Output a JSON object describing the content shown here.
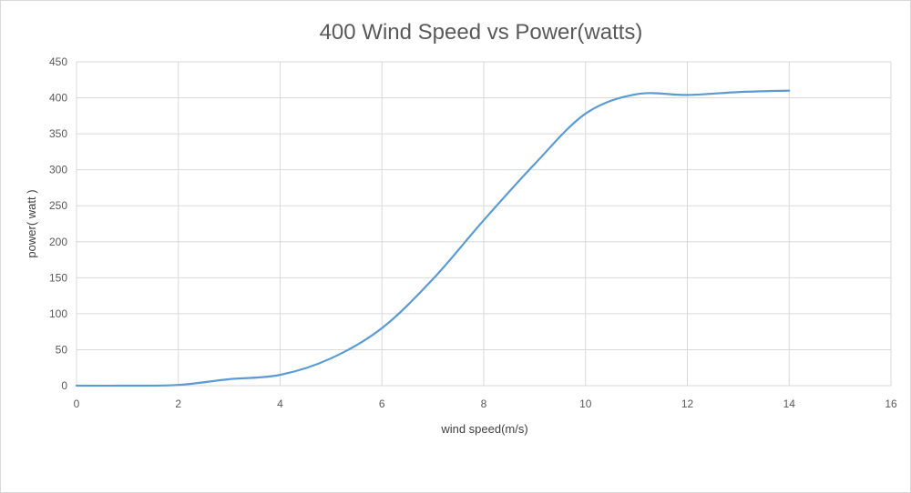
{
  "chart_data": {
    "type": "line",
    "title": "400 Wind Speed vs Power(watts)",
    "xlabel": "wind speed(m/s)",
    "ylabel": "power( watt )",
    "xlim": [
      0,
      16
    ],
    "ylim": [
      0,
      450
    ],
    "x_ticks": [
      0,
      2,
      4,
      6,
      8,
      10,
      12,
      14,
      16
    ],
    "y_ticks": [
      0,
      50,
      100,
      150,
      200,
      250,
      300,
      350,
      400,
      450
    ],
    "grid": true,
    "legend": "none",
    "series": [
      {
        "name": "Power",
        "color": "#5B9BD5",
        "x": [
          0,
          1,
          2,
          3,
          4,
          5,
          6,
          7,
          8,
          9,
          10,
          11,
          12,
          13,
          14
        ],
        "values": [
          0,
          0,
          1,
          9,
          15,
          38,
          80,
          148,
          230,
          308,
          378,
          405,
          404,
          408,
          410
        ]
      }
    ]
  }
}
